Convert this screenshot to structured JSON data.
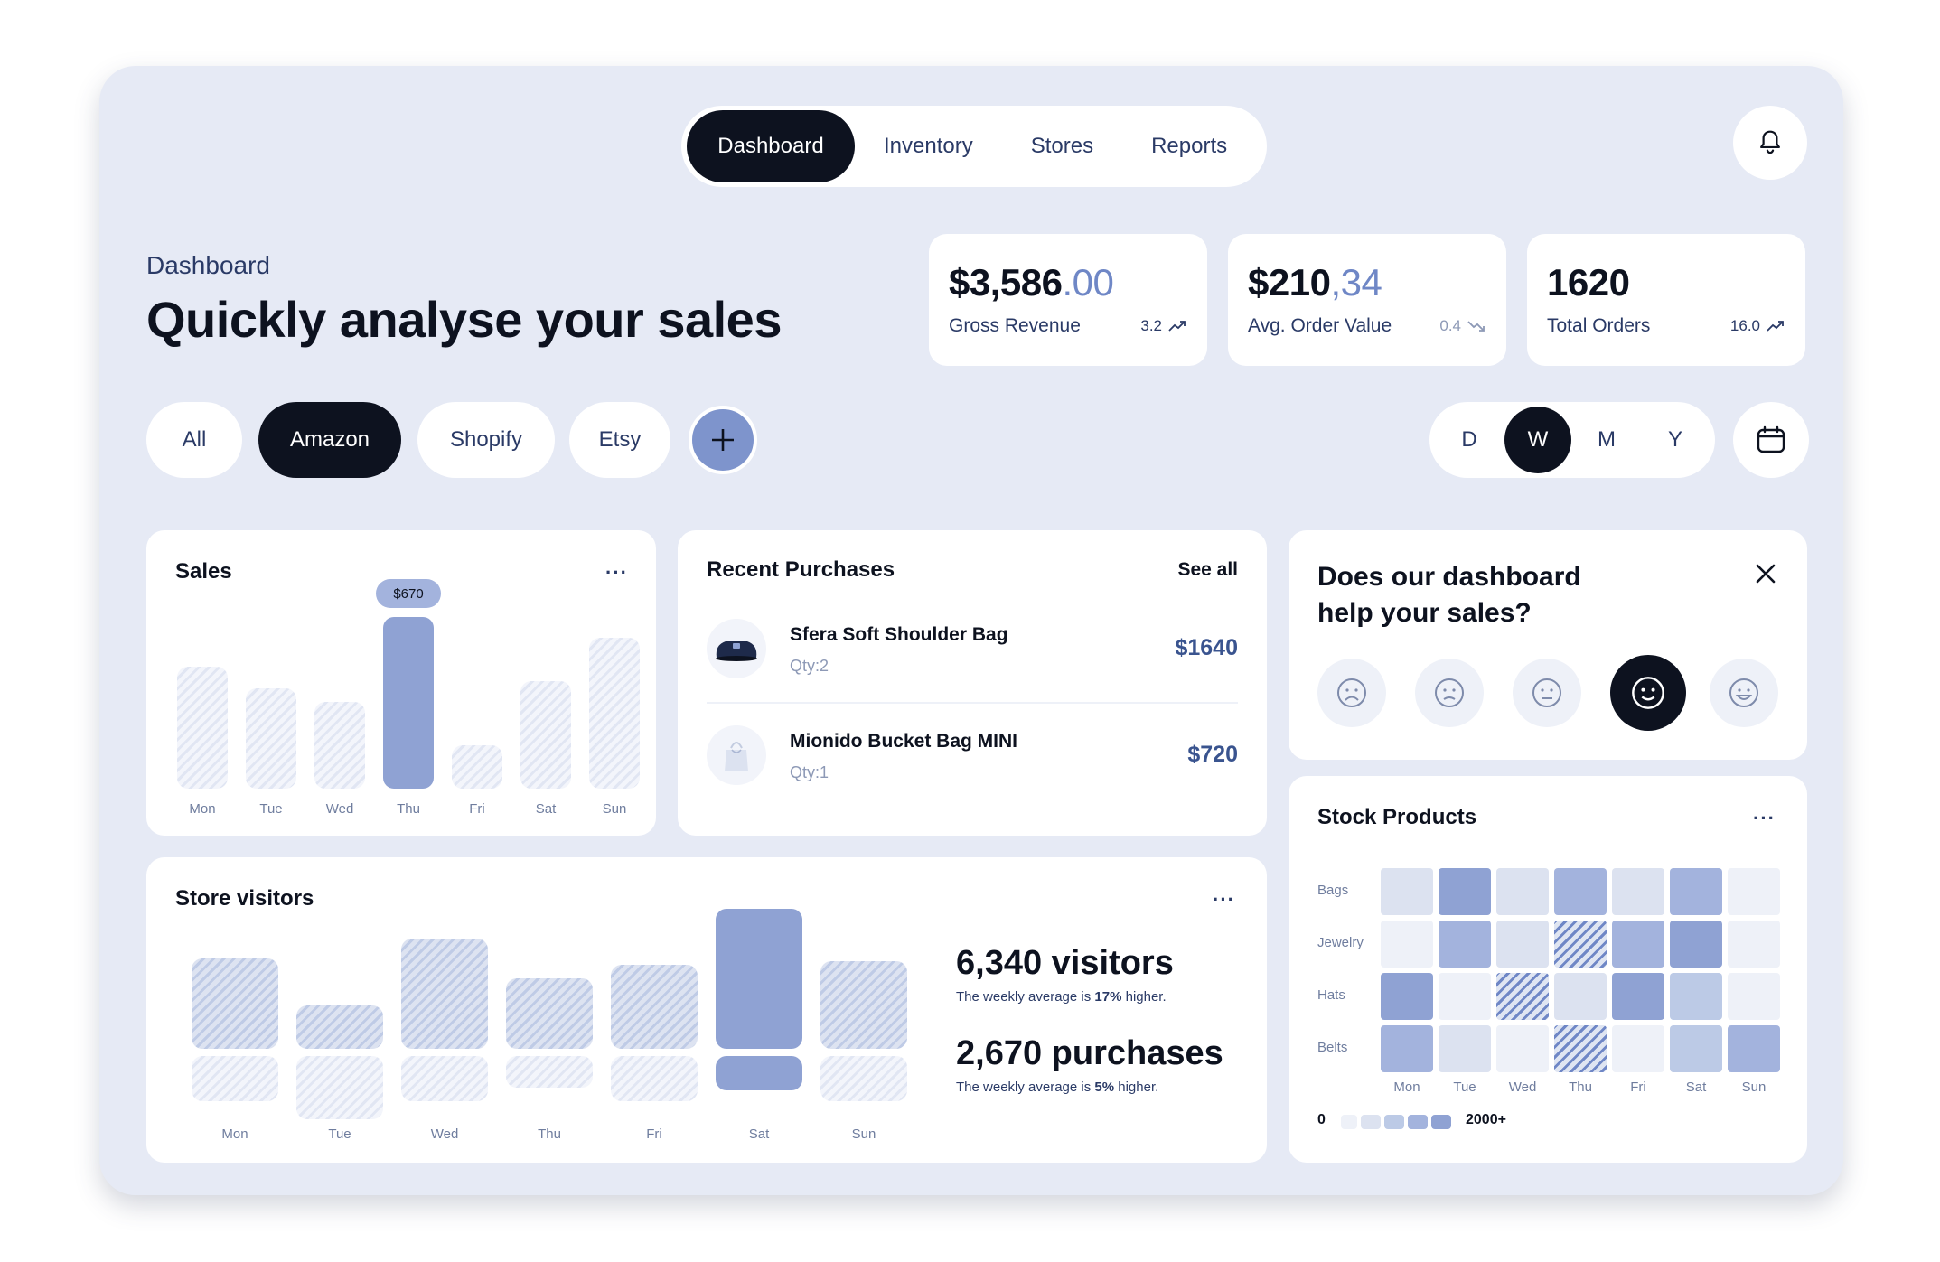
{
  "nav": {
    "items": [
      "Dashboard",
      "Inventory",
      "Stores",
      "Reports"
    ],
    "active": "Dashboard"
  },
  "header": {
    "eyebrow": "Dashboard",
    "title": "Quickly analyse your sales"
  },
  "kpis": [
    {
      "value_main": "$3,586",
      "value_frac": ".00",
      "label": "Gross Revenue",
      "delta": "3.2",
      "trend": "up"
    },
    {
      "value_main": "$210",
      "value_frac": ",34",
      "label": "Avg. Order Value",
      "delta": "0.4",
      "trend": "down"
    },
    {
      "value_main": "1620",
      "value_frac": "",
      "label": "Total Orders",
      "delta": "16.0",
      "trend": "up"
    }
  ],
  "filters": {
    "stores": [
      "All",
      "Amazon",
      "Shopify",
      "Etsy"
    ],
    "active_store": "Amazon",
    "periods": [
      "D",
      "W",
      "M",
      "Y"
    ],
    "active_period": "W"
  },
  "sales": {
    "title": "Sales",
    "tooltip": "$670",
    "chart_data": {
      "type": "bar",
      "categories": [
        "Mon",
        "Tue",
        "Wed",
        "Thu",
        "Fri",
        "Sat",
        "Sun"
      ],
      "values": [
        475,
        390,
        340,
        670,
        170,
        420,
        590
      ],
      "highlight": "Thu",
      "title": "Sales"
    }
  },
  "recent_purchases": {
    "title": "Recent Purchases",
    "see_all": "See all",
    "items": [
      {
        "name": "Sfera Soft Shoulder Bag",
        "qty": "Qty:2",
        "price": "$1640",
        "icon": "shoulder-bag-icon"
      },
      {
        "name": "Mionido Bucket Bag MINI",
        "qty": "Qty:1",
        "price": "$720",
        "icon": "bucket-bag-icon"
      }
    ]
  },
  "feedback": {
    "title_line1": "Does our dashboard",
    "title_line2": "help your sales?",
    "options": [
      "very-sad-face-icon",
      "sad-face-icon",
      "neutral-face-icon",
      "smile-face-icon",
      "happy-face-icon"
    ],
    "selected_index": 3
  },
  "store_visitors": {
    "title": "Store visitors",
    "visitors_value": "6,340 visitors",
    "visitors_note_prefix": "The weekly average is ",
    "visitors_note_pct": "17%",
    "visitors_note_suffix": " higher.",
    "purchases_value": "2,670 purchases",
    "purchases_note_prefix": "The weekly average is ",
    "purchases_note_pct": "5%",
    "purchases_note_suffix": " higher.",
    "chart_data": {
      "type": "bar",
      "categories": [
        "Mon",
        "Tue",
        "Wed",
        "Thu",
        "Fri",
        "Sat",
        "Sun"
      ],
      "series": [
        {
          "values": [
            100,
            48,
            122,
            78,
            93,
            155,
            97
          ]
        },
        {
          "values": [
            50,
            70,
            50,
            35,
            50,
            38,
            50
          ]
        }
      ],
      "highlight": "Sat"
    }
  },
  "stock": {
    "title": "Stock Products",
    "legend_min": "0",
    "legend_max": "2000+",
    "chart_data": {
      "type": "heatmap",
      "rows": [
        "Bags",
        "Jewelry",
        "Hats",
        "Belts"
      ],
      "columns": [
        "Mon",
        "Tue",
        "Wed",
        "Thu",
        "Fri",
        "Sat",
        "Sun"
      ],
      "values": [
        [
          1,
          4,
          1,
          3,
          1,
          3,
          0
        ],
        [
          0,
          3,
          1,
          5,
          3,
          4,
          0
        ],
        [
          4,
          0,
          5,
          1,
          4,
          2,
          0
        ],
        [
          3,
          1,
          0,
          5,
          0,
          2,
          3
        ]
      ],
      "scale": [
        "#eef1f8",
        "#dce2f0",
        "#bccae6",
        "#a3b3dd",
        "#8fa2d3"
      ]
    }
  },
  "colors": {
    "accent": "#7e94cc",
    "dark": "#0d121f",
    "background": "#e6eaf5"
  }
}
